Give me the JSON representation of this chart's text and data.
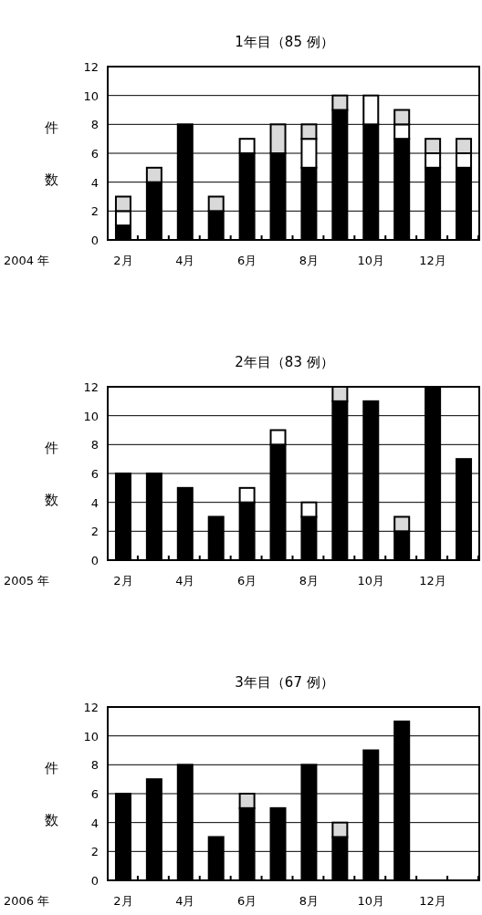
{
  "chart_data": [
    {
      "type": "bar",
      "title": "1年目（85 例）",
      "xlabel": "2004 年",
      "ylabel": "件数",
      "stacked": true,
      "grid": "y",
      "ylim": [
        0,
        12
      ],
      "yticks": [
        0,
        2,
        4,
        6,
        8,
        10,
        12
      ],
      "categories": [
        "2月",
        null,
        "4月",
        null,
        "6月",
        null,
        "8月",
        null,
        "10月",
        null,
        "12月",
        null
      ],
      "series": [
        {
          "color": "#000000",
          "values": [
            1,
            4,
            8,
            2,
            6,
            6,
            5,
            9,
            8,
            7,
            5,
            5
          ]
        },
        {
          "color": "#ffffff",
          "values": [
            1,
            0,
            0,
            0,
            1,
            0,
            2,
            0,
            2,
            1,
            1,
            1
          ]
        },
        {
          "color": "#d9d9d9",
          "values": [
            1,
            1,
            0,
            1,
            0,
            2,
            1,
            1,
            0,
            1,
            1,
            1
          ]
        }
      ]
    },
    {
      "type": "bar",
      "title": "2年目（83 例）",
      "xlabel": "2005 年",
      "ylabel": "件数",
      "stacked": true,
      "grid": "y",
      "ylim": [
        0,
        12
      ],
      "yticks": [
        0,
        2,
        4,
        6,
        8,
        10,
        12
      ],
      "categories": [
        "2月",
        null,
        "4月",
        null,
        "6月",
        null,
        "8月",
        null,
        "10月",
        null,
        "12月",
        null
      ],
      "series": [
        {
          "color": "#000000",
          "values": [
            6,
            6,
            5,
            3,
            4,
            8,
            3,
            11,
            11,
            2,
            12,
            7
          ]
        },
        {
          "color": "#ffffff",
          "values": [
            0,
            0,
            0,
            0,
            1,
            1,
            1,
            0,
            0,
            0,
            0,
            0
          ]
        },
        {
          "color": "#d9d9d9",
          "values": [
            0,
            0,
            0,
            0,
            0,
            0,
            0,
            1,
            0,
            1,
            0,
            0
          ]
        }
      ]
    },
    {
      "type": "bar",
      "title": "3年目（67 例）",
      "xlabel": "2006 年",
      "ylabel": "件数",
      "stacked": true,
      "grid": "y",
      "ylim": [
        0,
        12
      ],
      "yticks": [
        0,
        2,
        4,
        6,
        8,
        10,
        12
      ],
      "categories": [
        "2月",
        null,
        "4月",
        null,
        "6月",
        null,
        "8月",
        null,
        "10月",
        null,
        "12月",
        null
      ],
      "series": [
        {
          "color": "#000000",
          "values": [
            6,
            7,
            8,
            3,
            5,
            5,
            8,
            3,
            9,
            11,
            null,
            null
          ]
        },
        {
          "color": "#d9d9d9",
          "values": [
            0,
            0,
            0,
            0,
            1,
            0,
            0,
            1,
            0,
            0,
            null,
            null
          ]
        }
      ]
    }
  ]
}
